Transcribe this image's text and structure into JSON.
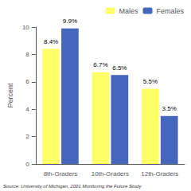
{
  "chart_data": {
    "type": "bar",
    "categories": [
      "8th-Graders",
      "10th-Graders",
      "12th-Graders"
    ],
    "series": [
      {
        "name": "Males",
        "color": "#FFFF66",
        "values": [
          8.4,
          6.7,
          5.5
        ],
        "value_labels": [
          "8.4%",
          "6.7%",
          "5.5%"
        ]
      },
      {
        "name": "Females",
        "color": "#4466BB",
        "values": [
          9.9,
          6.5,
          3.5
        ],
        "value_labels": [
          "9.9%",
          "6.5%",
          "3.5%"
        ]
      }
    ],
    "ylabel": "Percent",
    "ylim": [
      0,
      10
    ],
    "yticks": [
      0,
      2,
      4,
      6,
      8,
      10
    ],
    "grid": false,
    "legend": "upper right",
    "data_labels": true,
    "annotations": [
      "Source: University of Michigan, 2001 Monitoring the Future Study"
    ]
  }
}
